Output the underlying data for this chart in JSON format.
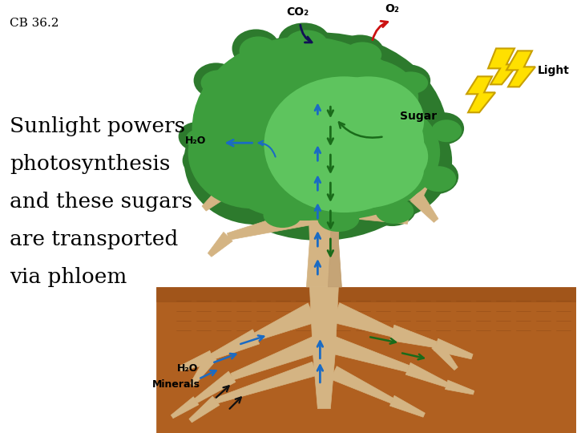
{
  "title": "CB 36.2",
  "subtitle_lines": [
    "Sunlight powers",
    "photosynthesis",
    "and these sugars",
    "are transported",
    "via phloem"
  ],
  "background_color": "#ffffff",
  "soil_color": "#b06020",
  "soil_dark_color": "#8b4513",
  "trunk_color": "#d4b483",
  "trunk_shadow": "#b8956a",
  "canopy_dark": "#2d7a2d",
  "canopy_mid": "#3d9e3d",
  "canopy_light": "#5ec45e",
  "root_color": "#d4b483",
  "root_shadow": "#b8956a",
  "arrow_blue": "#1a6bc4",
  "arrow_green": "#1a6b1a",
  "arrow_black": "#111111",
  "arrow_red": "#cc1111",
  "arrow_navy": "#111155",
  "label_co2": "CO₂",
  "label_o2": "O₂",
  "label_h2o_leaf": "H₂O",
  "label_sugar": "Sugar",
  "label_light": "Light",
  "label_h2o_root": "H₂O",
  "label_minerals": "Minerals",
  "zigzag_fill": "#ffe000",
  "zigzag_edge": "#c8a000"
}
